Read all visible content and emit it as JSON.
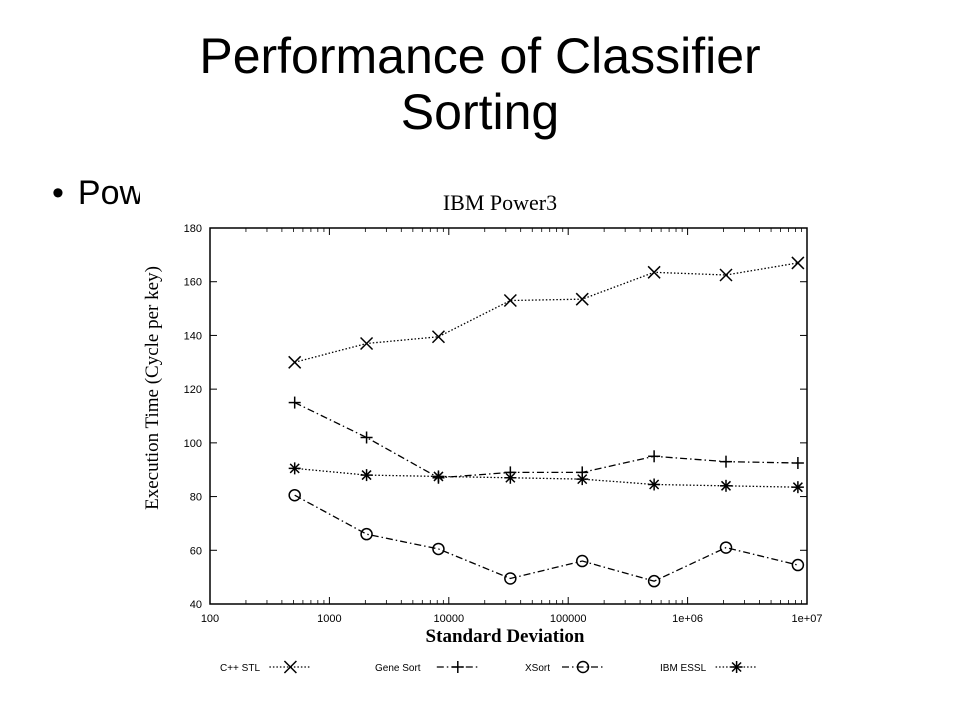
{
  "slide": {
    "title_line1": "Performance of Classifier",
    "title_line2": "Sorting",
    "bullet_text": "Pow"
  },
  "chart_data": {
    "type": "line",
    "title": "IBM Power3",
    "xlabel": "Standard Deviation",
    "ylabel": "Execution Time (Cycle per key)",
    "x_scale": "log",
    "xlim": [
      100,
      10000000
    ],
    "ylim": [
      40,
      180
    ],
    "x_ticks": [
      {
        "value": 100,
        "label": "100"
      },
      {
        "value": 1000,
        "label": "1000"
      },
      {
        "value": 10000,
        "label": "10000"
      },
      {
        "value": 100000,
        "label": "100000"
      },
      {
        "value": 1000000,
        "label": "1e+06"
      },
      {
        "value": 10000000,
        "label": "1e+07"
      }
    ],
    "y_ticks": [
      40,
      60,
      80,
      100,
      120,
      140,
      160,
      180
    ],
    "grid": false,
    "legend_position": "bottom",
    "x": [
      512,
      2048,
      8192,
      32768,
      131072,
      524288,
      2097152,
      8388608
    ],
    "series": [
      {
        "name": "C++ STL",
        "marker": "x",
        "dash": "dotted",
        "values": [
          130,
          137,
          139.5,
          153,
          153.5,
          163.5,
          162.5,
          167
        ]
      },
      {
        "name": "Gene Sort",
        "marker": "plus",
        "dash": "dashdot",
        "values": [
          115,
          102,
          87,
          89,
          89,
          95,
          93,
          92.5
        ]
      },
      {
        "name": "XSort",
        "marker": "circle",
        "dash": "dashdot",
        "values": [
          80.5,
          66,
          60.5,
          49.5,
          56,
          48.5,
          61,
          54.5
        ]
      },
      {
        "name": "IBM ESSL",
        "marker": "star",
        "dash": "dotted",
        "values": [
          90.5,
          88,
          87.5,
          87,
          86.5,
          84.5,
          84,
          83.5
        ]
      }
    ]
  }
}
